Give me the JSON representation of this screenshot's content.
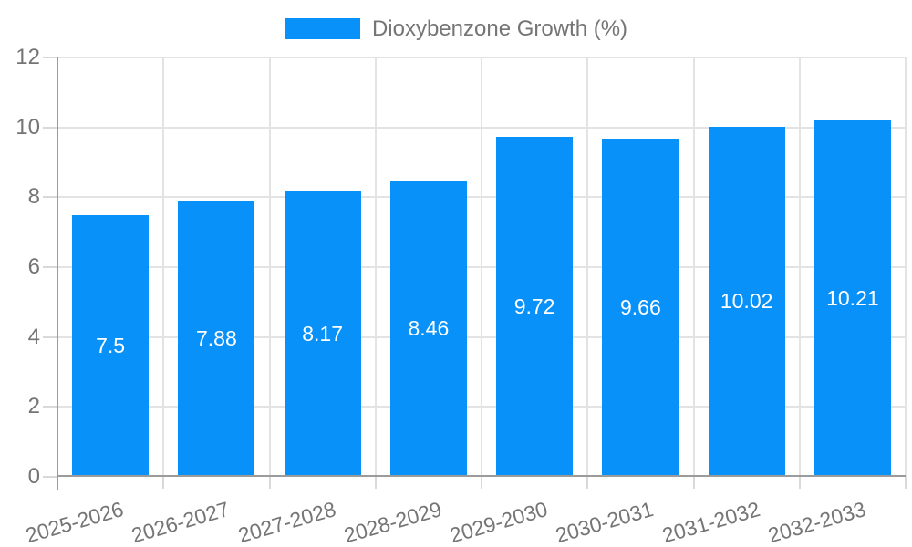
{
  "chart_data": {
    "type": "bar",
    "legend_label": "Dioxybenzone Growth (%)",
    "legend_position": "top-center",
    "categories": [
      "2025-2026",
      "2026-2027",
      "2027-2028",
      "2028-2029",
      "2029-2030",
      "2030-2031",
      "2031-2032",
      "2032-2033"
    ],
    "series": [
      {
        "name": "Dioxybenzone Growth (%)",
        "values": [
          7.5,
          7.88,
          8.17,
          8.46,
          9.72,
          9.66,
          10.02,
          10.21
        ]
      }
    ],
    "value_labels": [
      "7.5",
      "7.88",
      "8.17",
      "8.46",
      "9.72",
      "9.66",
      "10.02",
      "10.21"
    ],
    "xlabel": "",
    "ylabel": "",
    "ylim": [
      0,
      12
    ],
    "y_ticks": [
      0,
      2,
      4,
      6,
      8,
      10,
      12
    ],
    "grid": true,
    "x_label_rotation_deg": -16,
    "colors": {
      "bar": "#0991fa",
      "grid": "#e3e3e3",
      "tick": "#d9d9d9",
      "axis": "#9b9b9b",
      "text": "#757575",
      "value_text": "#ffffff",
      "background": "#ffffff"
    }
  }
}
